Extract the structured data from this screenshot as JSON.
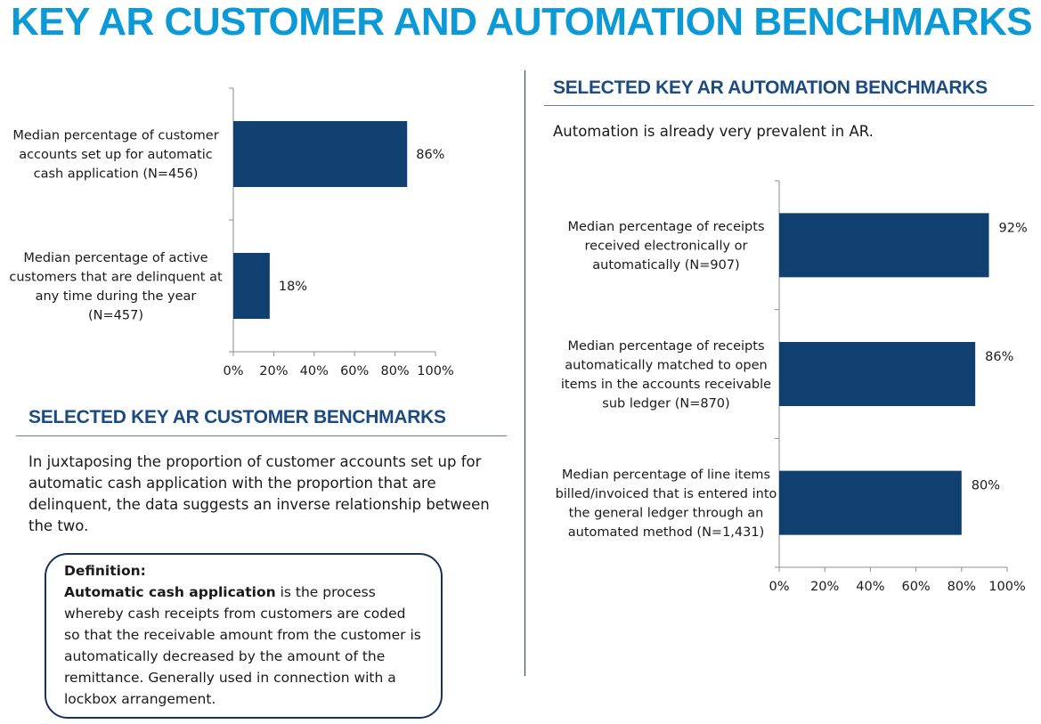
{
  "page": {
    "title": "KEY AR CUSTOMER AND AUTOMATION BENCHMARKS"
  },
  "customer_section": {
    "heading": "SELECTED KEY AR CUSTOMER BENCHMARKS",
    "text": "In juxtaposing the proportion of customer accounts set up for automatic cash application with the proportion that are delinquent, the data suggests an inverse relationship between the two."
  },
  "automation_section": {
    "heading": "SELECTED KEY AR AUTOMATION BENCHMARKS",
    "subtitle": "Automation is already very prevalent in AR."
  },
  "definition": {
    "heading": "Definition:",
    "term": "Automatic cash application",
    "body": " is the process whereby cash receipts from customers are coded so that the receivable amount from the customer is automatically decreased by the amount of the remittance. Generally used in connection with a lockbox arrangement."
  },
  "colors": {
    "title": "#0b9ad6",
    "heading": "#1b4b80",
    "bar": "#10406f"
  },
  "chart_data": [
    {
      "type": "bar",
      "orientation": "horizontal",
      "categories": [
        [
          "Median percentage of customer",
          "accounts set up for automatic",
          "cash application (N=456)"
        ],
        [
          "Median percentage of active",
          "customers that are delinquent at",
          "any time during the year",
          "(N=457)"
        ]
      ],
      "values": [
        86,
        18
      ],
      "data_labels": [
        "86%",
        "18%"
      ],
      "xlim": [
        0,
        100
      ],
      "xticks": [
        "0%",
        "20%",
        "40%",
        "60%",
        "80%",
        "100%"
      ],
      "grid": false
    },
    {
      "type": "bar",
      "orientation": "horizontal",
      "categories": [
        [
          "Median percentage of receipts",
          "received electronically or",
          "automatically (N=907)"
        ],
        [
          "Median percentage of receipts",
          "automatically matched to open",
          "items in the accounts receivable",
          "sub ledger (N=870)"
        ],
        [
          "Median percentage of line items",
          "billed/invoiced that is entered into",
          "the general ledger through an",
          "automated method (N=1,431)"
        ]
      ],
      "values": [
        92,
        86,
        80
      ],
      "data_labels": [
        "92%",
        "86%",
        "80%"
      ],
      "xlim": [
        0,
        100
      ],
      "xticks": [
        "0%",
        "20%",
        "40%",
        "60%",
        "80%",
        "100%"
      ],
      "grid": false
    }
  ]
}
